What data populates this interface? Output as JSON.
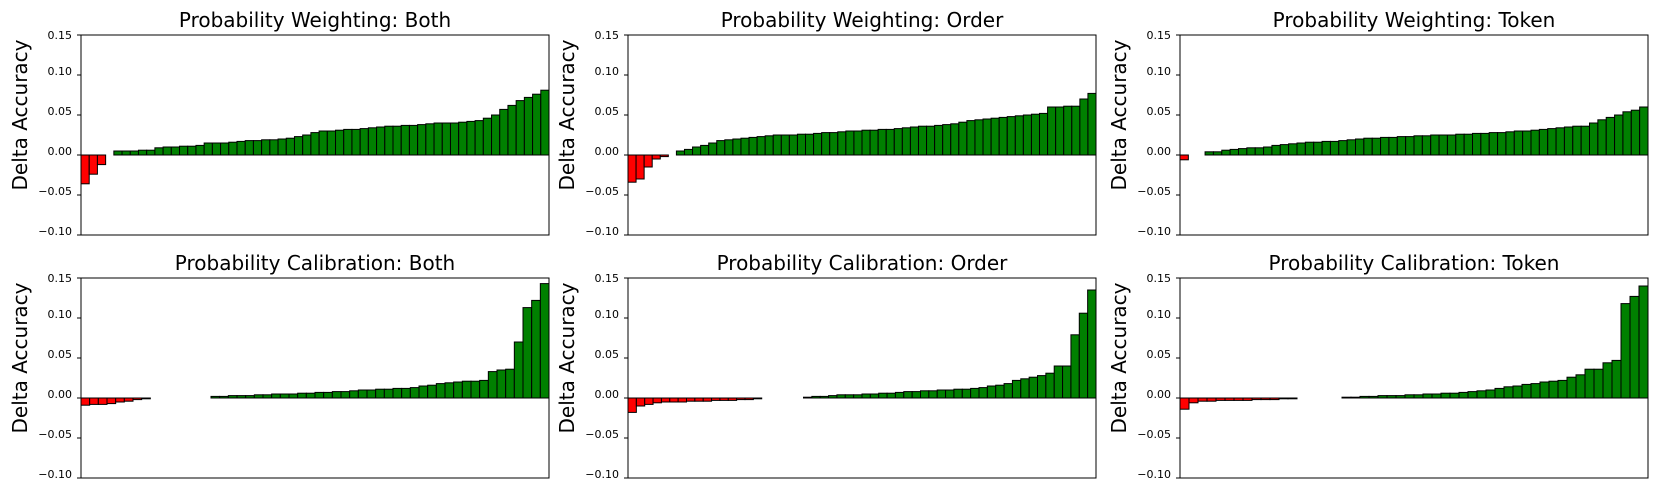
{
  "chart_data": [
    {
      "type": "bar",
      "title": "Probability Weighting: Both",
      "ylabel": "Delta Accuracy",
      "xlabel": "",
      "ylim": [
        -0.1,
        0.15
      ],
      "yticks": [
        "0.15",
        "0.10",
        "0.05",
        "0.00",
        "−0.05",
        "−0.10"
      ],
      "grid": false,
      "values": [
        -0.036,
        -0.024,
        -0.012,
        0.0,
        0.005,
        0.005,
        0.005,
        0.006,
        0.006,
        0.009,
        0.01,
        0.01,
        0.011,
        0.011,
        0.012,
        0.015,
        0.015,
        0.015,
        0.016,
        0.017,
        0.018,
        0.018,
        0.019,
        0.019,
        0.02,
        0.021,
        0.023,
        0.025,
        0.028,
        0.03,
        0.03,
        0.031,
        0.032,
        0.032,
        0.033,
        0.034,
        0.035,
        0.036,
        0.036,
        0.037,
        0.037,
        0.038,
        0.039,
        0.04,
        0.04,
        0.04,
        0.041,
        0.042,
        0.043,
        0.046,
        0.05,
        0.057,
        0.062,
        0.068,
        0.072,
        0.076,
        0.081
      ],
      "colors": {
        "positive": "#008000",
        "negative": "#ff0000"
      }
    },
    {
      "type": "bar",
      "title": "Probability Weighting: Order",
      "ylabel": "Delta Accuracy",
      "xlabel": "",
      "ylim": [
        -0.1,
        0.15
      ],
      "yticks": [
        "0.15",
        "0.10",
        "0.05",
        "0.00",
        "−0.05",
        "−0.10"
      ],
      "grid": false,
      "values": [
        -0.034,
        -0.03,
        -0.015,
        -0.005,
        -0.002,
        0.0,
        0.005,
        0.007,
        0.01,
        0.012,
        0.015,
        0.018,
        0.019,
        0.02,
        0.021,
        0.022,
        0.023,
        0.024,
        0.025,
        0.025,
        0.025,
        0.026,
        0.026,
        0.027,
        0.028,
        0.028,
        0.029,
        0.03,
        0.03,
        0.031,
        0.031,
        0.032,
        0.032,
        0.033,
        0.034,
        0.035,
        0.036,
        0.036,
        0.037,
        0.038,
        0.039,
        0.041,
        0.043,
        0.044,
        0.045,
        0.046,
        0.047,
        0.048,
        0.049,
        0.05,
        0.051,
        0.052,
        0.06,
        0.06,
        0.061,
        0.061,
        0.07,
        0.077
      ],
      "colors": {
        "positive": "#008000",
        "negative": "#ff0000"
      }
    },
    {
      "type": "bar",
      "title": "Probability Weighting: Token",
      "ylabel": "Delta Accuracy",
      "xlabel": "",
      "ylim": [
        -0.1,
        0.15
      ],
      "yticks": [
        "0.15",
        "0.10",
        "0.05",
        "0.00",
        "−0.05",
        "−0.10"
      ],
      "grid": false,
      "values": [
        -0.006,
        0.0,
        0.0,
        0.004,
        0.004,
        0.006,
        0.007,
        0.008,
        0.009,
        0.009,
        0.01,
        0.012,
        0.013,
        0.014,
        0.015,
        0.016,
        0.016,
        0.017,
        0.017,
        0.018,
        0.019,
        0.02,
        0.021,
        0.021,
        0.022,
        0.022,
        0.023,
        0.023,
        0.024,
        0.024,
        0.025,
        0.025,
        0.025,
        0.026,
        0.026,
        0.027,
        0.027,
        0.028,
        0.028,
        0.029,
        0.03,
        0.03,
        0.031,
        0.032,
        0.033,
        0.034,
        0.035,
        0.036,
        0.036,
        0.04,
        0.044,
        0.047,
        0.05,
        0.054,
        0.056,
        0.06
      ],
      "colors": {
        "positive": "#008000",
        "negative": "#ff0000"
      }
    },
    {
      "type": "bar",
      "title": "Probability Calibration: Both",
      "ylabel": "Delta Accuracy",
      "xlabel": "",
      "ylim": [
        -0.1,
        0.15
      ],
      "yticks": [
        "0.15",
        "0.10",
        "0.05",
        "0.00",
        "−0.05",
        "−0.10"
      ],
      "grid": false,
      "values": [
        -0.009,
        -0.008,
        -0.008,
        -0.007,
        -0.005,
        -0.004,
        -0.002,
        -0.001,
        0.0,
        0.0,
        0.0,
        0.0,
        0.0,
        0.0,
        0.0,
        0.002,
        0.002,
        0.003,
        0.003,
        0.003,
        0.004,
        0.004,
        0.005,
        0.005,
        0.005,
        0.006,
        0.006,
        0.007,
        0.007,
        0.008,
        0.008,
        0.009,
        0.01,
        0.01,
        0.011,
        0.011,
        0.012,
        0.012,
        0.013,
        0.015,
        0.016,
        0.018,
        0.019,
        0.02,
        0.021,
        0.021,
        0.022,
        0.033,
        0.035,
        0.036,
        0.07,
        0.113,
        0.122,
        0.143
      ],
      "colors": {
        "positive": "#008000",
        "negative": "#ff0000"
      }
    },
    {
      "type": "bar",
      "title": "Probability Calibration: Order",
      "ylabel": "Delta Accuracy",
      "xlabel": "",
      "ylim": [
        -0.1,
        0.15
      ],
      "yticks": [
        "0.15",
        "0.10",
        "0.05",
        "0.00",
        "−0.05",
        "−0.10"
      ],
      "grid": false,
      "values": [
        -0.018,
        -0.01,
        -0.008,
        -0.006,
        -0.005,
        -0.005,
        -0.005,
        -0.004,
        -0.004,
        -0.004,
        -0.003,
        -0.003,
        -0.003,
        -0.002,
        -0.002,
        -0.001,
        0.0,
        0.0,
        0.0,
        0.0,
        0.0,
        0.001,
        0.002,
        0.002,
        0.003,
        0.004,
        0.004,
        0.004,
        0.005,
        0.005,
        0.006,
        0.006,
        0.007,
        0.008,
        0.008,
        0.009,
        0.009,
        0.01,
        0.01,
        0.011,
        0.011,
        0.012,
        0.013,
        0.015,
        0.016,
        0.018,
        0.022,
        0.024,
        0.026,
        0.028,
        0.031,
        0.04,
        0.04,
        0.079,
        0.106,
        0.135
      ],
      "colors": {
        "positive": "#008000",
        "negative": "#ff0000"
      }
    },
    {
      "type": "bar",
      "title": "Probability Calibration: Token",
      "ylabel": "Delta Accuracy",
      "xlabel": "",
      "ylim": [
        -0.1,
        0.15
      ],
      "yticks": [
        "0.15",
        "0.10",
        "0.05",
        "0.00",
        "−0.05",
        "−0.10"
      ],
      "grid": false,
      "values": [
        -0.014,
        -0.006,
        -0.004,
        -0.004,
        -0.003,
        -0.003,
        -0.003,
        -0.003,
        -0.002,
        -0.002,
        -0.002,
        -0.001,
        -0.001,
        0.0,
        0.0,
        0.0,
        0.0,
        0.0,
        0.001,
        0.001,
        0.002,
        0.002,
        0.003,
        0.003,
        0.003,
        0.004,
        0.004,
        0.005,
        0.005,
        0.006,
        0.006,
        0.007,
        0.008,
        0.009,
        0.01,
        0.012,
        0.014,
        0.015,
        0.017,
        0.018,
        0.02,
        0.021,
        0.022,
        0.026,
        0.029,
        0.036,
        0.036,
        0.044,
        0.047,
        0.118,
        0.127,
        0.14
      ],
      "colors": {
        "positive": "#008000",
        "negative": "#ff0000"
      }
    }
  ]
}
